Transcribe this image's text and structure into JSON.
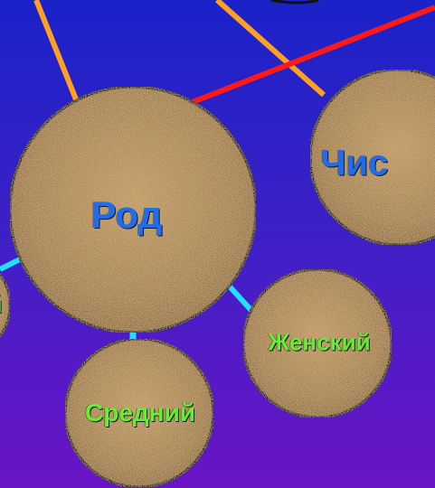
{
  "colors": {
    "label_blue": "#1f6cf0",
    "label_green": "#66ee33",
    "edge_orange": "#ffa020",
    "edge_red": "#ff1a1a",
    "edge_cyan": "#22e0ff",
    "node_fill": "#b18a55",
    "node_border": "#111111"
  },
  "nodes": {
    "rod": {
      "label": "Род"
    },
    "chis": {
      "label": "Чис"
    },
    "zhenskiy": {
      "label": "Женский"
    },
    "sredniy": {
      "label": "Средний"
    },
    "left_partial": {
      "label": "й"
    }
  }
}
